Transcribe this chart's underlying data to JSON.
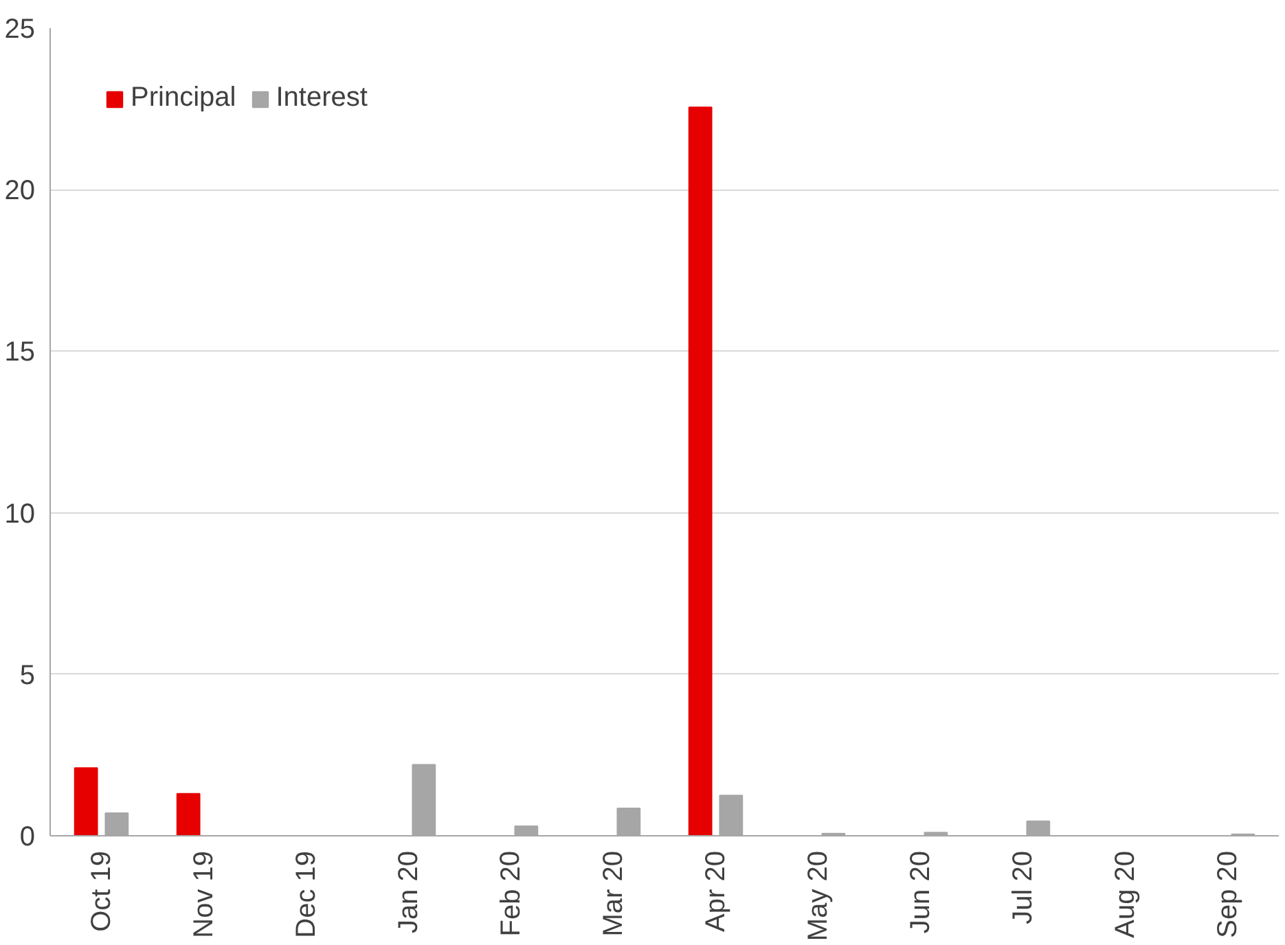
{
  "chart_data": {
    "type": "bar",
    "categories": [
      "Oct 19",
      "Nov 19",
      "Dec 19",
      "Jan 20",
      "Feb 20",
      "Mar 20",
      "Apr 20",
      "May 20",
      "Jun 20",
      "Jul 20",
      "Aug 20",
      "Sep 20"
    ],
    "series": [
      {
        "name": "Principal",
        "color": "#e60000",
        "values": [
          2.1,
          1.3,
          null,
          0,
          0,
          0,
          22.55,
          0,
          0,
          0,
          0,
          0
        ]
      },
      {
        "name": "Interest",
        "color": "#a6a6a6",
        "values": [
          0.7,
          null,
          null,
          2.2,
          0.3,
          0.85,
          1.25,
          0.07,
          0.1,
          0.45,
          null,
          0.05
        ]
      }
    ],
    "ylim": [
      0,
      25
    ],
    "yticks": [
      0,
      5,
      10,
      15,
      20,
      25
    ],
    "grid": "y",
    "legend": "top left"
  }
}
